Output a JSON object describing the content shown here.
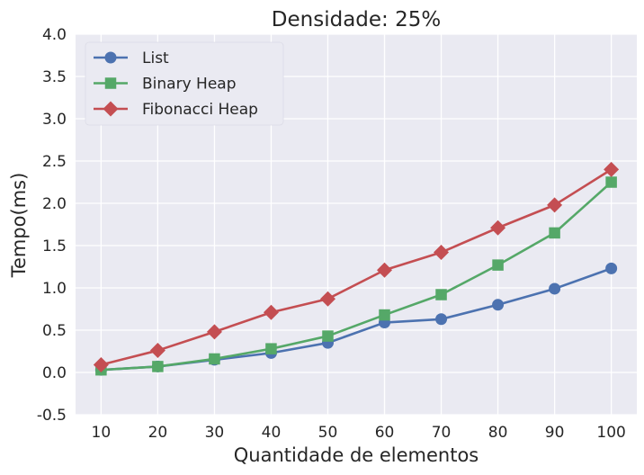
{
  "chart_data": {
    "type": "line",
    "title": "Densidade: 25%",
    "xlabel": "Quantidade de elementos",
    "ylabel": "Tempo(ms)",
    "x": [
      10,
      20,
      30,
      40,
      50,
      60,
      70,
      80,
      90,
      100
    ],
    "x_ticks": [
      "10",
      "20",
      "30",
      "40",
      "50",
      "60",
      "70",
      "80",
      "90",
      "100"
    ],
    "ylim": [
      -0.5,
      4.0
    ],
    "y_ticks": [
      "-0.5",
      "0.0",
      "0.5",
      "1.0",
      "1.5",
      "2.0",
      "2.5",
      "3.0",
      "3.5",
      "4.0"
    ],
    "y_tick_values": [
      -0.5,
      0.0,
      0.5,
      1.0,
      1.5,
      2.0,
      2.5,
      3.0,
      3.5,
      4.0
    ],
    "grid": true,
    "legend_position": "top-left",
    "series": [
      {
        "name": "List",
        "marker": "circle",
        "color": "#4C72B0",
        "values": [
          0.03,
          0.07,
          0.15,
          0.23,
          0.35,
          0.59,
          0.63,
          0.8,
          0.99,
          1.23
        ]
      },
      {
        "name": "Binary Heap",
        "marker": "square",
        "color": "#55A868",
        "values": [
          0.03,
          0.07,
          0.16,
          0.28,
          0.43,
          0.68,
          0.92,
          1.27,
          1.65,
          2.25
        ]
      },
      {
        "name": "Fibonacci Heap",
        "marker": "diamond",
        "color": "#C44E52",
        "values": [
          0.09,
          0.26,
          0.48,
          0.71,
          0.87,
          1.21,
          1.42,
          1.71,
          1.98,
          2.4
        ]
      }
    ],
    "colors": {
      "plot_background": "#EAEAF2",
      "grid": "#FFFFFF"
    }
  }
}
